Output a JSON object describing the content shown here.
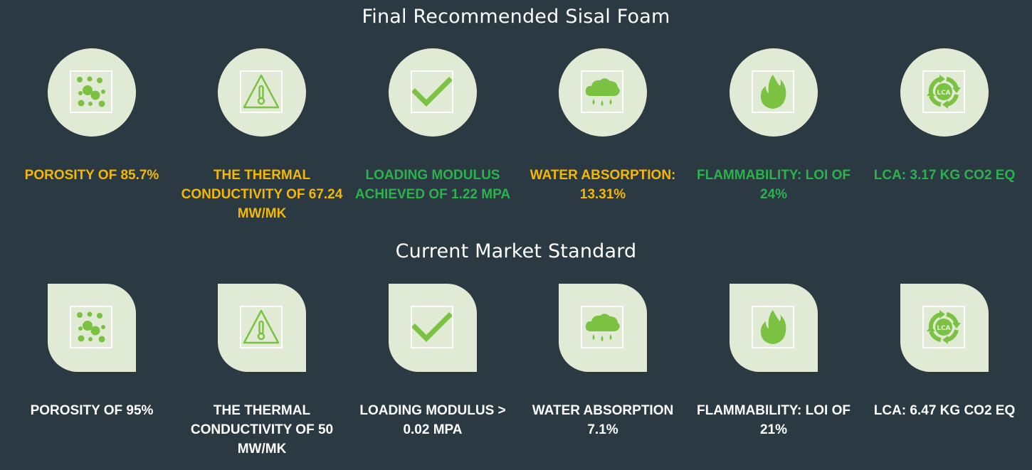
{
  "titles": {
    "top": "Final Recommended Sisal Foam",
    "bottom": "Current Market Standard"
  },
  "colors": {
    "background": "#2a3942",
    "badge": "#e1ead5",
    "icon_green": "#7cc242",
    "label_orange": "#f5b800",
    "label_green": "#2bb24c",
    "label_white": "#ffffff"
  },
  "recommended": [
    {
      "icon": "bubbles-icon",
      "label": "POROSITY OF 85.7%",
      "color": "#f5b800"
    },
    {
      "icon": "thermometer-warning-icon",
      "label": "THE THERMAL CONDUCTIVITY OF 67.24 MW/MK",
      "color": "#f5b800"
    },
    {
      "icon": "checkmark-icon",
      "label": "LOADING MODULUS ACHIEVED OF 1.22 MPA",
      "color": "#2bb24c"
    },
    {
      "icon": "rain-cloud-icon",
      "label": "WATER ABSORPTION: 13.31%",
      "color": "#f5b800"
    },
    {
      "icon": "flame-icon",
      "label": "FLAMMABILITY: LOI OF 24%",
      "color": "#2bb24c"
    },
    {
      "icon": "lca-cycle-icon",
      "label": "LCA: 3.17 KG CO2 EQ",
      "color": "#2bb24c",
      "icon_text": "LCA"
    }
  ],
  "market": [
    {
      "icon": "bubbles-icon",
      "label": "POROSITY OF 95%"
    },
    {
      "icon": "thermometer-warning-icon",
      "label": "THE THERMAL CONDUCTIVITY OF 50 MW/MK"
    },
    {
      "icon": "checkmark-icon",
      "label": "LOADING MODULUS > 0.02 MPA"
    },
    {
      "icon": "rain-cloud-icon",
      "label": "WATER ABSORPTION 7.1%"
    },
    {
      "icon": "flame-icon",
      "label": "FLAMMABILITY: LOI OF 21%"
    },
    {
      "icon": "lca-cycle-icon",
      "label": "LCA: 6.47 KG CO2 EQ",
      "icon_text": "LCA"
    }
  ]
}
